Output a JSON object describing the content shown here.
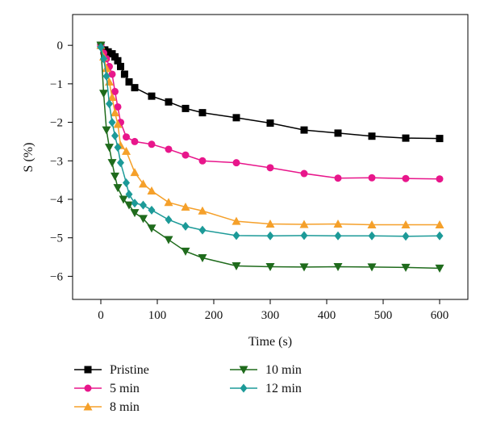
{
  "chart_data": {
    "type": "line",
    "xlabel": "Time (s)",
    "ylabel": "S (%)",
    "xlim": [
      -50,
      650
    ],
    "ylim": [
      -6.6,
      0.8
    ],
    "xticks": [
      0,
      100,
      200,
      300,
      400,
      500,
      600
    ],
    "yticks": [
      0,
      -1,
      -2,
      -3,
      -4,
      -5,
      -6
    ],
    "grid": false,
    "legend_placement": "bottom",
    "series": [
      {
        "name": "Pristine",
        "color": "#000000",
        "marker": "square",
        "x": [
          0,
          7,
          13,
          20,
          25,
          30,
          35,
          42,
          50,
          60,
          90,
          120,
          150,
          180,
          240,
          300,
          360,
          420,
          480,
          540,
          600
        ],
        "y": [
          0,
          -0.12,
          -0.17,
          -0.22,
          -0.3,
          -0.4,
          -0.55,
          -0.75,
          -0.95,
          -1.1,
          -1.32,
          -1.47,
          -1.64,
          -1.75,
          -1.88,
          -2.02,
          -2.2,
          -2.28,
          -2.36,
          -2.41,
          -2.42
        ]
      },
      {
        "name": "5 min",
        "color": "#e8168b",
        "marker": "circle",
        "x": [
          0,
          5,
          10,
          15,
          20,
          25,
          30,
          35,
          45,
          60,
          90,
          120,
          150,
          180,
          240,
          300,
          360,
          420,
          480,
          540,
          600
        ],
        "y": [
          0,
          -0.2,
          -0.35,
          -0.55,
          -0.75,
          -1.2,
          -1.6,
          -2.0,
          -2.38,
          -2.5,
          -2.57,
          -2.7,
          -2.85,
          -3.0,
          -3.05,
          -3.18,
          -3.33,
          -3.45,
          -3.44,
          -3.46,
          -3.47
        ]
      },
      {
        "name": "8 min",
        "color": "#f5a02a",
        "marker": "triangle-up",
        "x": [
          0,
          5,
          10,
          15,
          20,
          25,
          30,
          35,
          45,
          60,
          75,
          90,
          120,
          150,
          180,
          240,
          300,
          360,
          420,
          480,
          540,
          600
        ],
        "y": [
          0,
          -0.3,
          -0.6,
          -0.95,
          -1.35,
          -1.75,
          -2.05,
          -2.6,
          -2.75,
          -3.3,
          -3.6,
          -3.78,
          -4.08,
          -4.2,
          -4.3,
          -4.57,
          -4.64,
          -4.65,
          -4.64,
          -4.66,
          -4.66,
          -4.66
        ]
      },
      {
        "name": "10 min",
        "color": "#1f6b1c",
        "marker": "triangle-down",
        "x": [
          0,
          5,
          10,
          15,
          20,
          25,
          30,
          40,
          50,
          60,
          75,
          90,
          120,
          150,
          180,
          240,
          300,
          360,
          420,
          480,
          540,
          600
        ],
        "y": [
          0,
          -1.25,
          -2.2,
          -2.65,
          -3.05,
          -3.4,
          -3.7,
          -4.0,
          -4.15,
          -4.35,
          -4.5,
          -4.75,
          -5.05,
          -5.35,
          -5.52,
          -5.73,
          -5.75,
          -5.76,
          -5.75,
          -5.76,
          -5.77,
          -5.79
        ]
      },
      {
        "name": "12 min",
        "color": "#1c9a98",
        "marker": "diamond",
        "x": [
          0,
          5,
          10,
          15,
          20,
          25,
          30,
          35,
          45,
          50,
          60,
          75,
          90,
          120,
          150,
          180,
          240,
          300,
          360,
          420,
          480,
          540,
          600
        ],
        "y": [
          -0.05,
          -0.35,
          -0.8,
          -1.52,
          -2.0,
          -2.35,
          -2.65,
          -3.05,
          -3.57,
          -3.87,
          -4.1,
          -4.15,
          -4.28,
          -4.53,
          -4.7,
          -4.8,
          -4.94,
          -4.95,
          -4.94,
          -4.95,
          -4.95,
          -4.96,
          -4.95
        ]
      }
    ]
  }
}
